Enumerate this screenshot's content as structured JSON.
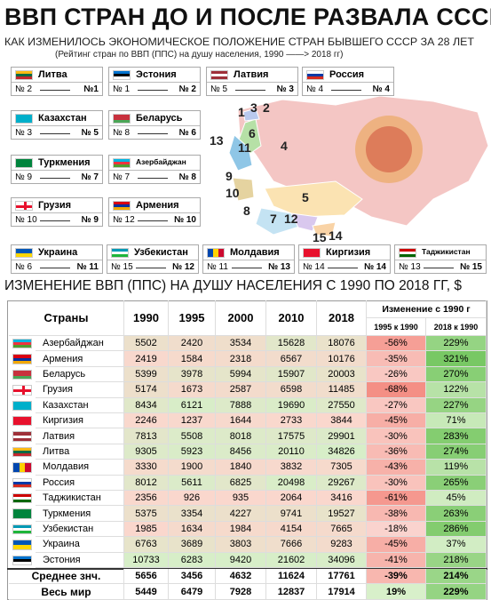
{
  "header": {
    "title": "ВВП СТРАН ДО И ПОСЛЕ РАЗВАЛА СССР",
    "subtitle": "КАК ИЗМЕНИЛОСЬ ЭКОНОМИЧЕСКОЕ ПОЛОЖЕНИЕ СТРАН БЫВШЕГО СССР ЗА 28 ЛЕТ",
    "note": "(Рейтинг стран по ВВП (ППС) на душу населения, 1990 ——> 2018 гг)"
  },
  "cards": [
    {
      "name": "Литва",
      "from": "№ 2",
      "to": "№1"
    },
    {
      "name": "Эстония",
      "from": "№ 1",
      "to": "№ 2"
    },
    {
      "name": "Латвия",
      "from": "№ 5",
      "to": "№ 3"
    },
    {
      "name": "Россия",
      "from": "№ 4",
      "to": "№ 4"
    },
    {
      "name": "Казахстан",
      "from": "№ 3",
      "to": "№ 5"
    },
    {
      "name": "Беларусь",
      "from": "№ 8",
      "to": "№ 6"
    },
    {
      "name": "Туркмения",
      "from": "№ 9",
      "to": "№ 7"
    },
    {
      "name": "Азербайджан",
      "from": "№ 7",
      "to": "№ 8"
    },
    {
      "name": "Грузия",
      "from": "№ 10",
      "to": "№ 9"
    },
    {
      "name": "Армения",
      "from": "№ 12",
      "to": "№ 10"
    },
    {
      "name": "Украина",
      "from": "№ 6",
      "to": "№ 11"
    },
    {
      "name": "Узбекистан",
      "from": "№ 15",
      "to": "№ 12"
    },
    {
      "name": "Молдавия",
      "from": "№ 11",
      "to": "№ 13"
    },
    {
      "name": "Киргизия",
      "from": "№ 14",
      "to": "№ 14"
    },
    {
      "name": "Таджикистан",
      "from": "№ 13",
      "to": "№ 15"
    }
  ],
  "map": {
    "labels": [
      "1",
      "3",
      "2",
      "6",
      "13",
      "11",
      "4",
      "9",
      "10",
      "8",
      "7",
      "12",
      "5",
      "15",
      "14"
    ]
  },
  "table": {
    "heading": "ИЗМЕНЕНИЕ ВВП (ППС) НА ДУШУ НАСЕЛЕНИЯ С 1990 ПО 2018 ГГ, $",
    "columns": [
      "Страны",
      "1990",
      "1995",
      "2000",
      "2010",
      "2018"
    ],
    "change_title": "Изменение с 1990 г",
    "change_columns": [
      "1995 к 1990",
      "2018 к 1990"
    ],
    "rows": [
      [
        "Азербайджан",
        5502,
        2420,
        3534,
        15628,
        18076,
        "-56%",
        "229%"
      ],
      [
        "Армения",
        2419,
        1584,
        2318,
        6567,
        10176,
        "-35%",
        "321%"
      ],
      [
        "Беларусь",
        5399,
        3978,
        5994,
        15907,
        20003,
        "-26%",
        "270%"
      ],
      [
        "Грузия",
        5174,
        1673,
        2587,
        6598,
        11485,
        "-68%",
        "122%"
      ],
      [
        "Казахстан",
        8434,
        6121,
        7888,
        19690,
        27550,
        "-27%",
        "227%"
      ],
      [
        "Киргизия",
        2246,
        1237,
        1644,
        2733,
        3844,
        "-45%",
        "71%"
      ],
      [
        "Латвия",
        7813,
        5508,
        8018,
        17575,
        29901,
        "-30%",
        "283%"
      ],
      [
        "Литва",
        9305,
        5923,
        8456,
        20110,
        34826,
        "-36%",
        "274%"
      ],
      [
        "Молдавия",
        3330,
        1900,
        1840,
        3832,
        7305,
        "-43%",
        "119%"
      ],
      [
        "Россия",
        8012,
        5611,
        6825,
        20498,
        29267,
        "-30%",
        "265%"
      ],
      [
        "Таджикистан",
        2356,
        926,
        935,
        2064,
        3416,
        "-61%",
        "45%"
      ],
      [
        "Туркмения",
        5375,
        3354,
        4227,
        9741,
        19527,
        "-38%",
        "263%"
      ],
      [
        "Узбекистан",
        1985,
        1634,
        1984,
        4154,
        7665,
        "-18%",
        "286%"
      ],
      [
        "Украина",
        6763,
        3689,
        3803,
        7666,
        9283,
        "-45%",
        "37%"
      ],
      [
        "Эстония",
        10733,
        6283,
        9420,
        21602,
        34096,
        "-41%",
        "218%"
      ]
    ],
    "summary": [
      [
        "Среднее знч.",
        5656,
        3456,
        4632,
        11624,
        17761,
        "-39%",
        "214%"
      ],
      [
        "Весь мир",
        5449,
        6479,
        7928,
        12837,
        17914,
        "19%",
        "229%"
      ]
    ]
  }
}
